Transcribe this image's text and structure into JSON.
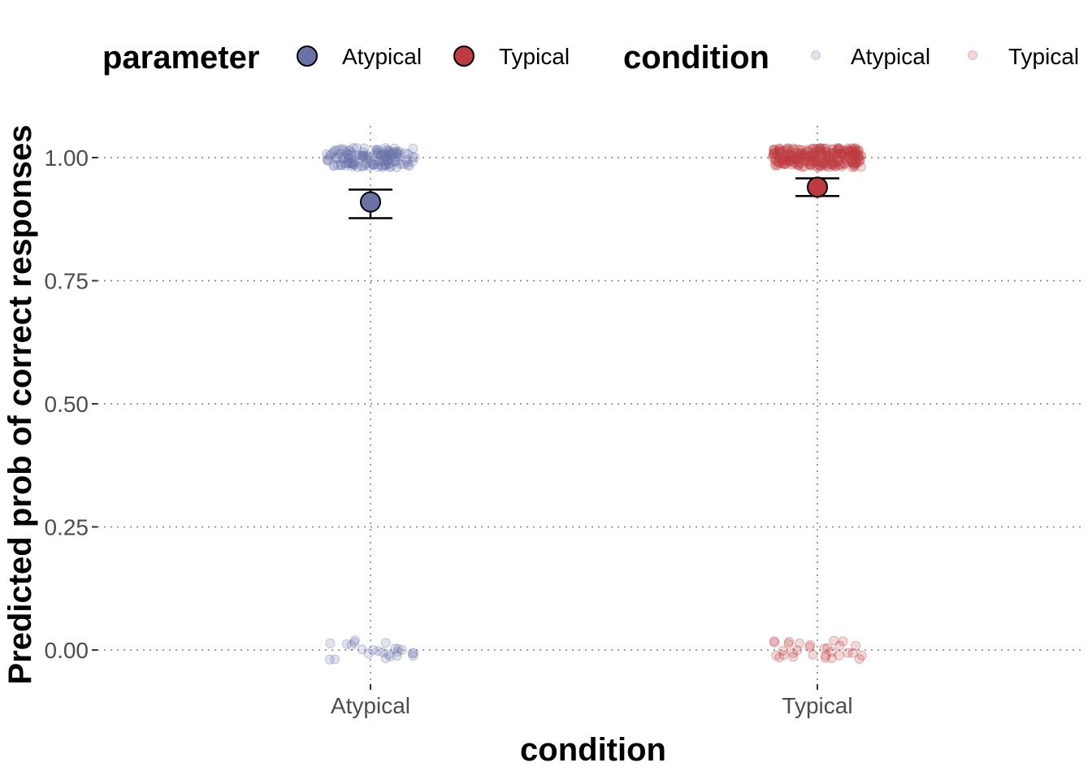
{
  "chart_data": {
    "type": "scatter",
    "xlabel": "condition",
    "ylabel": "Predicted prob of correct responses",
    "categories": [
      "Atypical",
      "Typical"
    ],
    "ylim": [
      -0.07,
      1.09
    ],
    "yticks": [
      {
        "value": 0.0,
        "label": "0.00"
      },
      {
        "value": 0.25,
        "label": "0.25"
      },
      {
        "value": 0.5,
        "label": "0.50"
      },
      {
        "value": 0.75,
        "label": "0.75"
      },
      {
        "value": 1.0,
        "label": "1.00"
      }
    ],
    "grid": "dotted major gridlines on x and y",
    "legend": {
      "position": "top",
      "groups": [
        {
          "title": "parameter",
          "entries": [
            {
              "label": "Atypical",
              "color": "#6a72a8",
              "style": "filled-circle-with-black-outline"
            },
            {
              "label": "Typical",
              "color": "#bd3b40",
              "style": "filled-circle-with-black-outline"
            }
          ]
        },
        {
          "title": "condition",
          "entries": [
            {
              "label": "Atypical",
              "color": "#6a72a8",
              "style": "translucent-point"
            },
            {
              "label": "Typical",
              "color": "#bd3b40",
              "style": "translucent-point"
            }
          ]
        }
      ]
    },
    "estimates": [
      {
        "category": "Atypical",
        "estimate": 0.91,
        "lower": 0.877,
        "upper": 0.935,
        "color": "#6a72a8"
      },
      {
        "category": "Typical",
        "estimate": 0.94,
        "lower": 0.922,
        "upper": 0.958,
        "color": "#bd3b40"
      }
    ],
    "raw_points": [
      {
        "category": "Atypical",
        "value": 1,
        "count": 140,
        "color": "#6a72a8"
      },
      {
        "category": "Atypical",
        "value": 0,
        "count": 24,
        "color": "#6a72a8"
      },
      {
        "category": "Typical",
        "value": 1,
        "count": 260,
        "color": "#bd3b40"
      },
      {
        "category": "Typical",
        "value": 0,
        "count": 30,
        "color": "#bd3b40"
      }
    ]
  }
}
